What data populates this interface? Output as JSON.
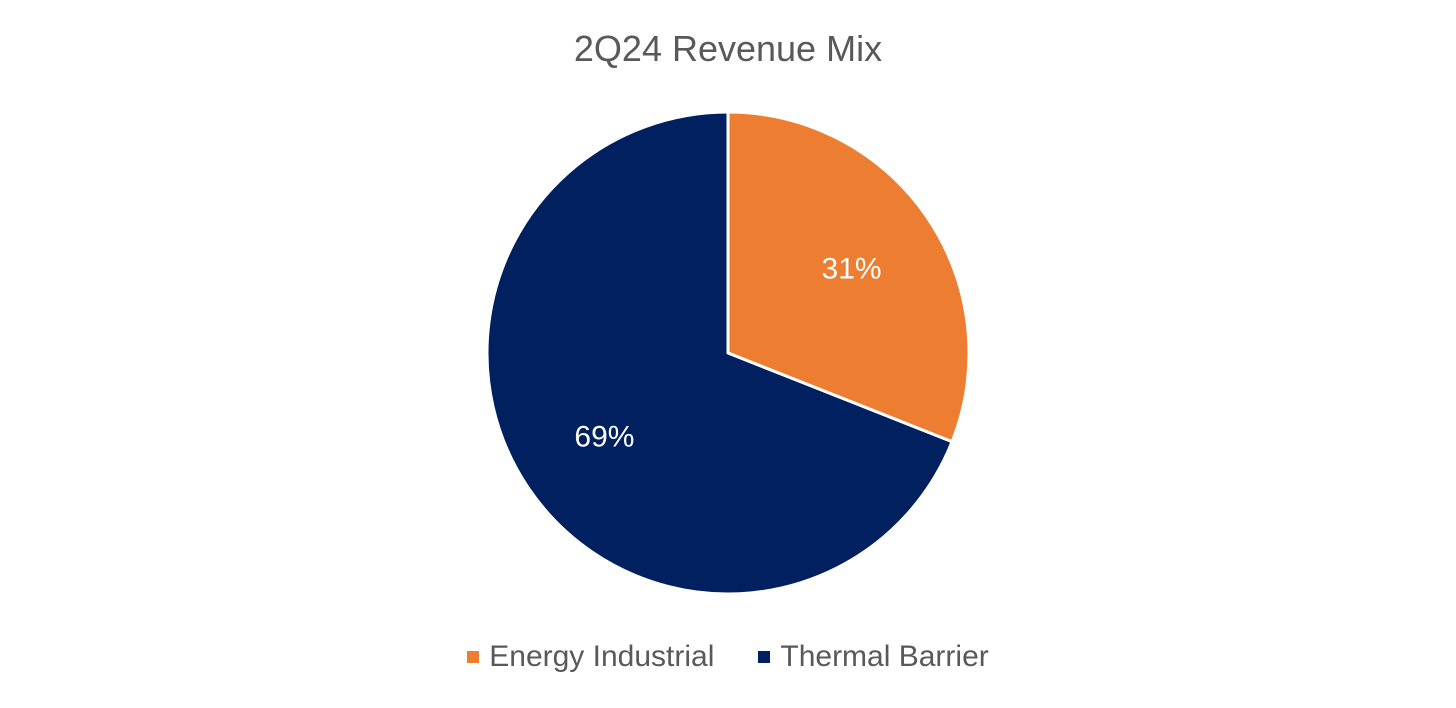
{
  "chart_data": {
    "type": "pie",
    "title": "2Q24 Revenue Mix",
    "slices": [
      {
        "name": "Energy Industrial",
        "value": 31,
        "label": "31%",
        "color": "#ED7D31"
      },
      {
        "name": "Thermal Barrier",
        "value": 69,
        "label": "69%",
        "color": "#002060"
      }
    ],
    "start_angle_deg": 0,
    "direction": "clockwise",
    "legend_position": "bottom"
  }
}
